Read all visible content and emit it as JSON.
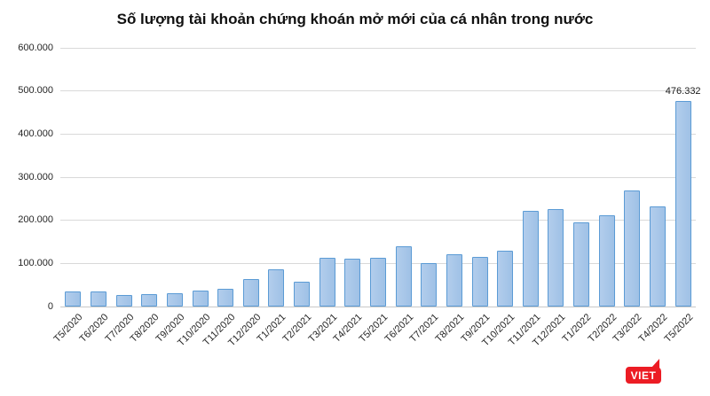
{
  "page": {
    "background": "#ffffff"
  },
  "chart_data": {
    "type": "bar",
    "title": "Số lượng tài khoản chứng khoán mở mới của cá nhân trong nước",
    "xlabel": "",
    "ylabel": "",
    "categories": [
      "T5/2020",
      "T6/2020",
      "T7/2020",
      "T8/2020",
      "T9/2020",
      "T10/2020",
      "T11/2020",
      "T12/2020",
      "T1/2021",
      "T2/2021",
      "T3/2021",
      "T4/2021",
      "T5/2021",
      "T6/2021",
      "T7/2021",
      "T8/2021",
      "T9/2021",
      "T10/2021",
      "T11/2021",
      "T12/2021",
      "T1/2022",
      "T2/2022",
      "T3/2022",
      "T4/2022",
      "T5/2022"
    ],
    "values": [
      34000,
      35000,
      27500,
      29000,
      31500,
      36500,
      41500,
      64000,
      86000,
      58000,
      113500,
      110500,
      113500,
      140000,
      101000,
      120500,
      115000,
      130000,
      221000,
      227000,
      195000,
      211000,
      270000,
      232000,
      476332
    ],
    "ylim": [
      0,
      600000
    ],
    "yticks": [
      {
        "value": 0,
        "label": "0"
      },
      {
        "value": 100000,
        "label": "100.000"
      },
      {
        "value": 200000,
        "label": "200.000"
      },
      {
        "value": 300000,
        "label": "300.000"
      },
      {
        "value": 400000,
        "label": "400.000"
      },
      {
        "value": 500000,
        "label": "500.000"
      },
      {
        "value": 600000,
        "label": "600.000"
      }
    ],
    "grid": "horizontal",
    "legend": "none",
    "annotated_point": {
      "category": "T5/2022",
      "label": "476.332"
    },
    "colors": {
      "bar_fill": "#a7c6e9",
      "bar_border": "#5b9bd5",
      "gridline": "#d9d9d9",
      "axis_text": "#262626",
      "title_text": "#111111"
    }
  },
  "logo": {
    "text": "VIET",
    "bg_color": "#ec1c24",
    "text_color": "#ffffff"
  }
}
